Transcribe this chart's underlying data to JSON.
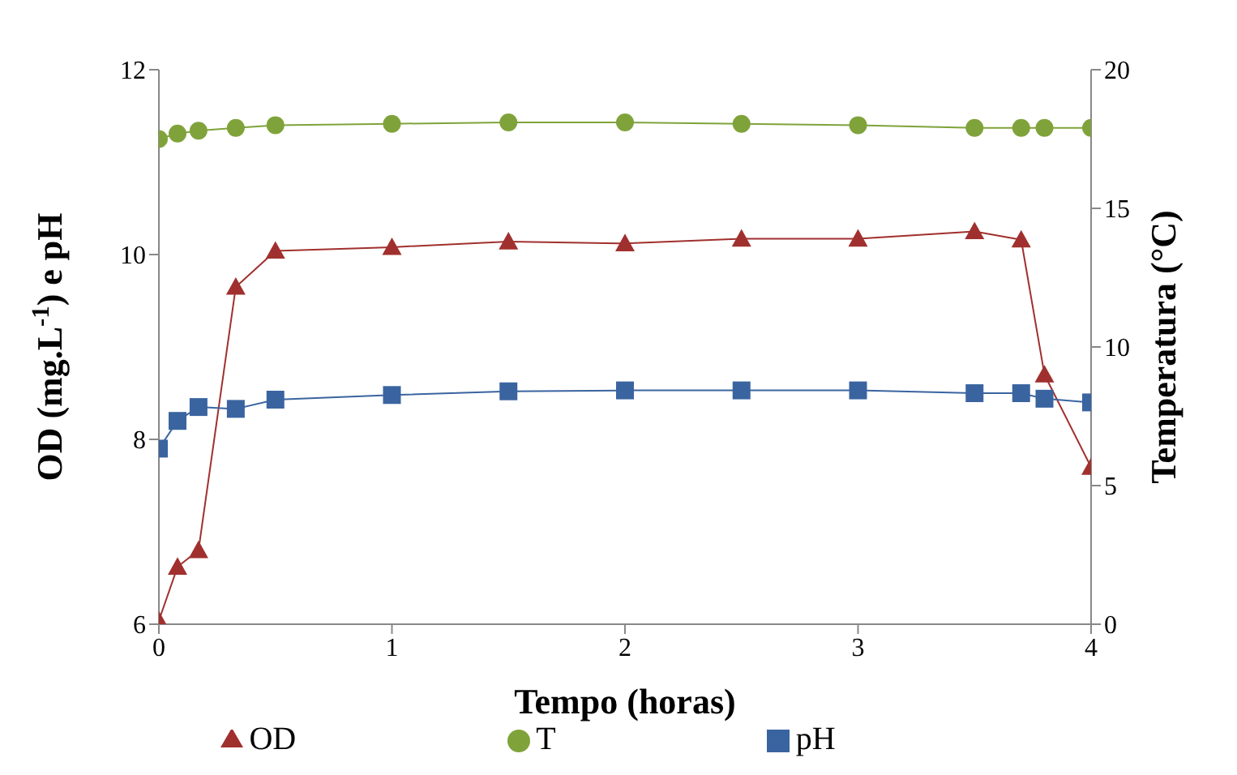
{
  "chart_data": {
    "type": "line",
    "xlabel": "Tempo (horas)",
    "ylabel": "OD (mg.L$^{-1}$) e pH",
    "y2label": "Temperatura (°C)",
    "x": [
      0,
      0.08,
      0.17,
      0.33,
      0.5,
      1,
      1.5,
      2,
      2.5,
      3,
      3.5,
      3.7,
      3.8,
      4
    ],
    "xlim": [
      0,
      4
    ],
    "xticks": [
      0,
      1,
      2,
      3,
      4
    ],
    "ylim": [
      6,
      12
    ],
    "yticks": [
      6,
      8,
      10,
      12
    ],
    "y2lim": [
      0,
      20
    ],
    "y2ticks": [
      0,
      5,
      10,
      15,
      20
    ],
    "grid": false,
    "legend": "bottom",
    "line_style": "solid",
    "series": [
      {
        "name": "OD",
        "color": "#a0302e",
        "marker": "triangle",
        "values": [
          6.04,
          6.62,
          6.8,
          9.65,
          10.04,
          10.08,
          10.14,
          10.12,
          10.17,
          10.17,
          10.25,
          10.16,
          8.7,
          7.7
        ]
      },
      {
        "name": "pH",
        "color": "#3a64a0",
        "marker": "square",
        "values": [
          7.9,
          8.2,
          8.35,
          8.33,
          8.43,
          8.48,
          8.52,
          8.53,
          8.53,
          8.53,
          8.5,
          8.5,
          8.44,
          8.4
        ]
      },
      {
        "name": "T",
        "color": "#7fa33a",
        "marker": "circle",
        "axis": "y2",
        "values": [
          17.5,
          17.7,
          17.8,
          17.9,
          18,
          18.05,
          18.1,
          18.1,
          18.05,
          18,
          17.9,
          17.9,
          17.9,
          17.9
        ]
      }
    ]
  }
}
